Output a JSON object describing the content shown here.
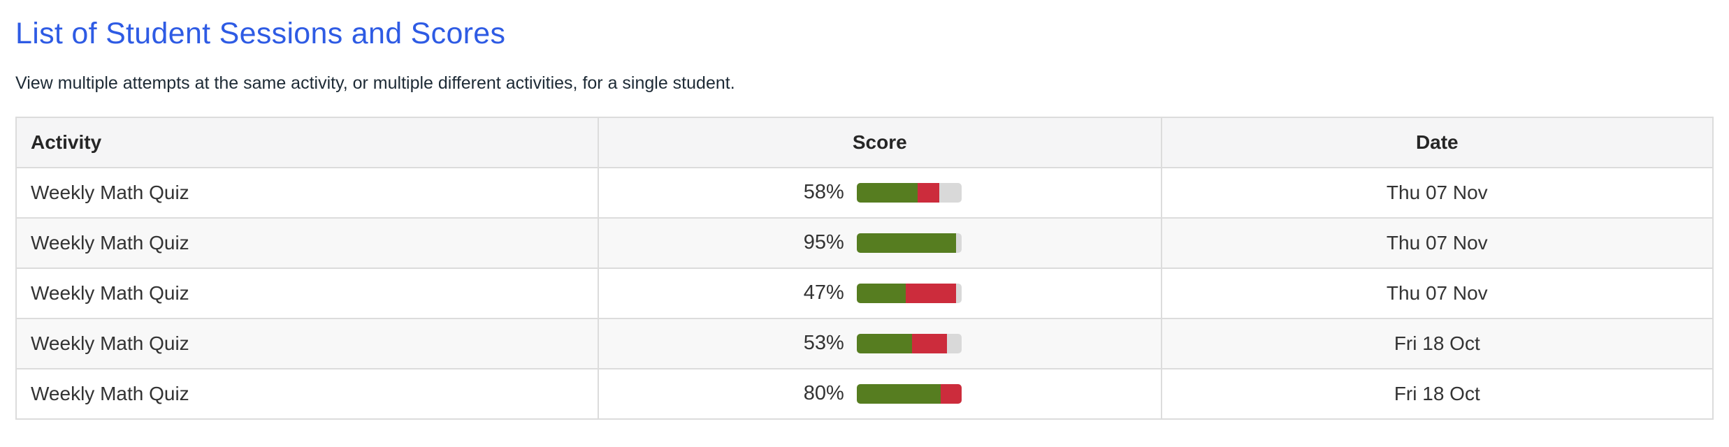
{
  "page": {
    "title": "List of Student Sessions and Scores",
    "subtitle": "View multiple attempts at the same activity, or multiple different activities, for a single student."
  },
  "table": {
    "columns": [
      "Activity",
      "Score",
      "Date"
    ],
    "rows": [
      {
        "activity": "Weekly Math Quiz",
        "score_label": "58%",
        "score": 58,
        "segments": {
          "correct": 58,
          "incorrect": 21,
          "unanswered": 21
        },
        "date": "Thu 07 Nov"
      },
      {
        "activity": "Weekly Math Quiz",
        "score_label": "95%",
        "score": 95,
        "segments": {
          "correct": 95,
          "incorrect": 0,
          "unanswered": 5
        },
        "date": "Thu 07 Nov"
      },
      {
        "activity": "Weekly Math Quiz",
        "score_label": "47%",
        "score": 47,
        "segments": {
          "correct": 47,
          "incorrect": 48,
          "unanswered": 5
        },
        "date": "Thu 07 Nov"
      },
      {
        "activity": "Weekly Math Quiz",
        "score_label": "53%",
        "score": 53,
        "segments": {
          "correct": 53,
          "incorrect": 33,
          "unanswered": 14
        },
        "date": "Fri 18 Oct"
      },
      {
        "activity": "Weekly Math Quiz",
        "score_label": "80%",
        "score": 80,
        "segments": {
          "correct": 80,
          "incorrect": 20,
          "unanswered": 0
        },
        "date": "Fri 18 Oct"
      }
    ]
  },
  "colors": {
    "title_blue": "#2e5be4",
    "bar_correct_green": "#567d20",
    "bar_incorrect_red": "#cc2c3c",
    "bar_remainder_gray": "#d9d9d9",
    "header_bg": "#f5f5f6",
    "row_alt_bg": "#f8f8f8",
    "border": "#dcdcdc"
  }
}
